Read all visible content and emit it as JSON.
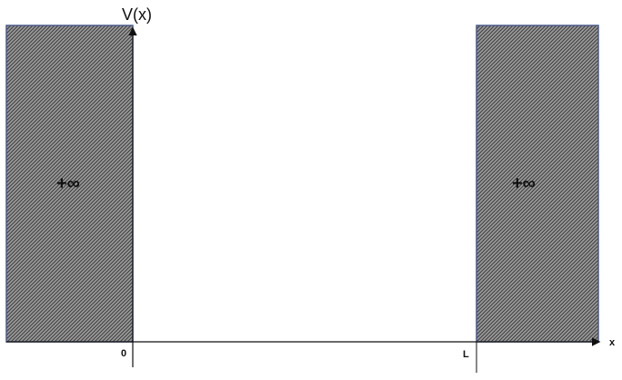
{
  "diagram": {
    "y_axis_label": "V(x)",
    "x_axis_label": "x",
    "origin_label": "0",
    "right_wall_position_label": "L",
    "left_wall_label": "+∞",
    "right_wall_label": "+∞",
    "wall_fill_color": "#7a7a7a",
    "wall_border_color": "#4a5a8a"
  }
}
